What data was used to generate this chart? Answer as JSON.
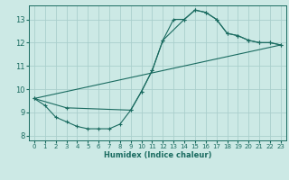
{
  "xlabel": "Humidex (Indice chaleur)",
  "ylabel": "",
  "background_color": "#cce9e5",
  "grid_color": "#aacfcc",
  "line_color": "#1a6b60",
  "xlim": [
    -0.5,
    23.5
  ],
  "ylim": [
    7.8,
    13.6
  ],
  "xticks": [
    0,
    1,
    2,
    3,
    4,
    5,
    6,
    7,
    8,
    9,
    10,
    11,
    12,
    13,
    14,
    15,
    16,
    17,
    18,
    19,
    20,
    21,
    22,
    23
  ],
  "yticks": [
    8,
    9,
    10,
    11,
    12,
    13
  ],
  "curve1_x": [
    0,
    1,
    2,
    3,
    4,
    5,
    6,
    7,
    8,
    9,
    10,
    11,
    12,
    13,
    14,
    15,
    16,
    17,
    18,
    19,
    20,
    21,
    22,
    23
  ],
  "curve1_y": [
    9.6,
    9.3,
    8.8,
    8.6,
    8.4,
    8.3,
    8.3,
    8.3,
    8.5,
    9.1,
    9.9,
    10.8,
    12.1,
    13.0,
    13.0,
    13.4,
    13.3,
    13.0,
    12.4,
    12.3,
    12.1,
    12.0,
    12.0,
    11.9
  ],
  "curve2_x": [
    0,
    3,
    9,
    10,
    11,
    12,
    14,
    15,
    16,
    17,
    18,
    19,
    20,
    21,
    22,
    23
  ],
  "curve2_y": [
    9.6,
    9.2,
    9.1,
    9.9,
    10.8,
    12.1,
    13.0,
    13.4,
    13.3,
    13.0,
    12.4,
    12.3,
    12.1,
    12.0,
    12.0,
    11.9
  ],
  "curve3_x": [
    0,
    23
  ],
  "curve3_y": [
    9.6,
    11.9
  ]
}
